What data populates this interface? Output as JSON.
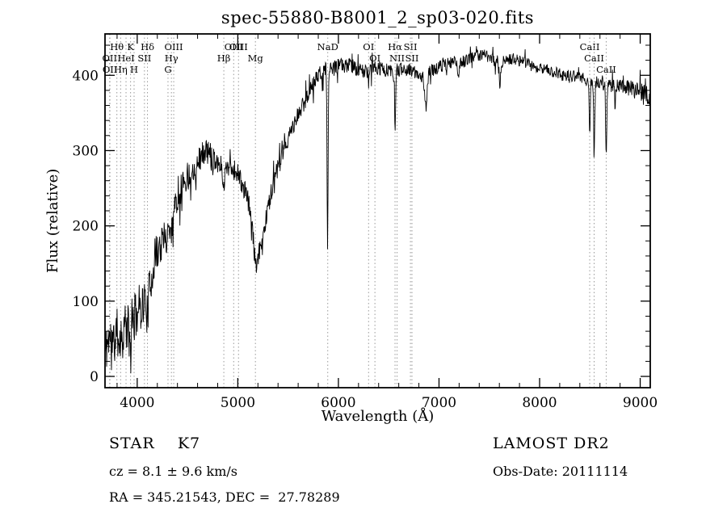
{
  "chart_data": {
    "type": "line",
    "title": "spec-55880-B8001_2_sp03-020.fits",
    "xlabel": "Wavelength (Å)",
    "ylabel": "Flux (relative)",
    "xlim": [
      3680,
      9100
    ],
    "ylim": [
      -15,
      455
    ],
    "x_major_ticks": [
      4000,
      5000,
      6000,
      7000,
      8000,
      9000
    ],
    "x_minor_step": 200,
    "y_major_ticks": [
      0,
      100,
      200,
      300,
      400
    ],
    "y_minor_step": 20,
    "grid": false,
    "legend": "none",
    "line_color": "#000000",
    "marker_color": "#999999",
    "axis_color": "#000000",
    "spectral_lines": [
      {
        "name": "Hθ",
        "wavelength": 3798,
        "row": 1
      },
      {
        "name": "K",
        "wavelength": 3934,
        "row": 1
      },
      {
        "name": "Hδ",
        "wavelength": 4102,
        "row": 1
      },
      {
        "name": "OIII",
        "wavelength": 4363,
        "row": 1
      },
      {
        "name": "OIII",
        "wavelength": 4959,
        "row": 1
      },
      {
        "name": "OIII",
        "wavelength": 5007,
        "row": 1
      },
      {
        "name": "NaD",
        "wavelength": 5894,
        "row": 1
      },
      {
        "name": "OI",
        "wavelength": 6300,
        "row": 1
      },
      {
        "name": "Hα",
        "wavelength": 6563,
        "row": 1
      },
      {
        "name": "SII",
        "wavelength": 6716,
        "row": 1
      },
      {
        "name": "CaII",
        "wavelength": 8498,
        "row": 1
      },
      {
        "name": "OII",
        "wavelength": 3726,
        "row": 2
      },
      {
        "name": "HeI",
        "wavelength": 3889,
        "row": 2
      },
      {
        "name": "SII",
        "wavelength": 4072,
        "row": 2
      },
      {
        "name": "Hγ",
        "wavelength": 4340,
        "row": 2
      },
      {
        "name": "Hβ",
        "wavelength": 4861,
        "row": 2
      },
      {
        "name": "Mg",
        "wavelength": 5175,
        "row": 2
      },
      {
        "name": "OI",
        "wavelength": 6363,
        "row": 2
      },
      {
        "name": "NII",
        "wavelength": 6583,
        "row": 2
      },
      {
        "name": "SII",
        "wavelength": 6731,
        "row": 2
      },
      {
        "name": "CaII",
        "wavelength": 8542,
        "row": 2
      },
      {
        "name": "OII",
        "wavelength": 3729,
        "row": 3
      },
      {
        "name": "Hη",
        "wavelength": 3835,
        "row": 3
      },
      {
        "name": "H",
        "wavelength": 3969,
        "row": 3
      },
      {
        "name": "G",
        "wavelength": 4306,
        "row": 3
      },
      {
        "name": "CaII",
        "wavelength": 8662,
        "row": 3
      }
    ],
    "continuum": [
      [
        3680,
        30
      ],
      [
        3720,
        55
      ],
      [
        3760,
        42
      ],
      [
        3800,
        58
      ],
      [
        3840,
        50
      ],
      [
        3880,
        68
      ],
      [
        3920,
        60
      ],
      [
        3960,
        72
      ],
      [
        4000,
        88
      ],
      [
        4040,
        95
      ],
      [
        4080,
        100
      ],
      [
        4120,
        112
      ],
      [
        4160,
        148
      ],
      [
        4200,
        168
      ],
      [
        4240,
        175
      ],
      [
        4280,
        182
      ],
      [
        4320,
        200
      ],
      [
        4360,
        222
      ],
      [
        4400,
        238
      ],
      [
        4450,
        256
      ],
      [
        4500,
        266
      ],
      [
        4550,
        272
      ],
      [
        4600,
        286
      ],
      [
        4650,
        296
      ],
      [
        4700,
        300
      ],
      [
        4750,
        292
      ],
      [
        4800,
        286
      ],
      [
        4860,
        272
      ],
      [
        4900,
        282
      ],
      [
        4950,
        276
      ],
      [
        5000,
        270
      ],
      [
        5050,
        252
      ],
      [
        5100,
        236
      ],
      [
        5150,
        200
      ],
      [
        5190,
        162
      ],
      [
        5230,
        172
      ],
      [
        5280,
        210
      ],
      [
        5330,
        244
      ],
      [
        5380,
        268
      ],
      [
        5430,
        288
      ],
      [
        5480,
        308
      ],
      [
        5530,
        326
      ],
      [
        5580,
        340
      ],
      [
        5630,
        356
      ],
      [
        5680,
        370
      ],
      [
        5730,
        384
      ],
      [
        5780,
        396
      ],
      [
        5830,
        404
      ],
      [
        5880,
        408
      ],
      [
        5930,
        406
      ],
      [
        5980,
        410
      ],
      [
        6050,
        414
      ],
      [
        6150,
        412
      ],
      [
        6250,
        404
      ],
      [
        6350,
        410
      ],
      [
        6450,
        408
      ],
      [
        6550,
        404
      ],
      [
        6650,
        410
      ],
      [
        6750,
        404
      ],
      [
        6850,
        398
      ],
      [
        6950,
        408
      ],
      [
        7050,
        414
      ],
      [
        7150,
        418
      ],
      [
        7250,
        418
      ],
      [
        7350,
        426
      ],
      [
        7450,
        428
      ],
      [
        7550,
        420
      ],
      [
        7650,
        420
      ],
      [
        7750,
        422
      ],
      [
        7850,
        416
      ],
      [
        7950,
        412
      ],
      [
        8050,
        408
      ],
      [
        8150,
        404
      ],
      [
        8250,
        400
      ],
      [
        8350,
        398
      ],
      [
        8450,
        394
      ],
      [
        8550,
        392
      ],
      [
        8650,
        388
      ],
      [
        8750,
        386
      ],
      [
        8850,
        386
      ],
      [
        8950,
        380
      ],
      [
        9050,
        376
      ],
      [
        9100,
        366
      ]
    ],
    "noise_profile": [
      [
        3680,
        32
      ],
      [
        3900,
        34
      ],
      [
        4100,
        30
      ],
      [
        4300,
        24
      ],
      [
        4600,
        17
      ],
      [
        5000,
        14
      ],
      [
        5400,
        13
      ],
      [
        5800,
        11
      ],
      [
        6200,
        10
      ],
      [
        6800,
        9
      ],
      [
        7400,
        8
      ],
      [
        8000,
        8
      ],
      [
        8600,
        9
      ],
      [
        9100,
        13
      ]
    ],
    "absorption_features": [
      {
        "center": 3934,
        "depth": 35,
        "sigma": 7
      },
      {
        "center": 4102,
        "depth": 28,
        "sigma": 6
      },
      {
        "center": 4340,
        "depth": 25,
        "sigma": 6
      },
      {
        "center": 4861,
        "depth": 24,
        "sigma": 7
      },
      {
        "center": 5175,
        "depth": 28,
        "sigma": 18
      },
      {
        "center": 5892,
        "depth": 232,
        "sigma": 5
      },
      {
        "center": 6300,
        "depth": 18,
        "sigma": 4
      },
      {
        "center": 6563,
        "depth": 72,
        "sigma": 6
      },
      {
        "center": 6870,
        "depth": 42,
        "sigma": 11
      },
      {
        "center": 7190,
        "depth": 18,
        "sigma": 9
      },
      {
        "center": 7605,
        "depth": 30,
        "sigma": 10
      },
      {
        "center": 8498,
        "depth": 70,
        "sigma": 5
      },
      {
        "center": 8542,
        "depth": 98,
        "sigma": 6
      },
      {
        "center": 8662,
        "depth": 88,
        "sigma": 6
      },
      {
        "center": 8750,
        "depth": 35,
        "sigma": 4
      }
    ],
    "noise": {
      "seed": 11,
      "spike_probability": 0.06,
      "spike_scale": 2.4,
      "sample_step": 4
    }
  },
  "footer": {
    "object_class": "STAR    K7",
    "cz": "cz = 8.1 ± 9.6 km/s",
    "ra_dec": "RA = 345.21543, DEC =  27.78289",
    "survey": "LAMOST DR2",
    "obs_date": "Obs-Date: 20111114"
  }
}
